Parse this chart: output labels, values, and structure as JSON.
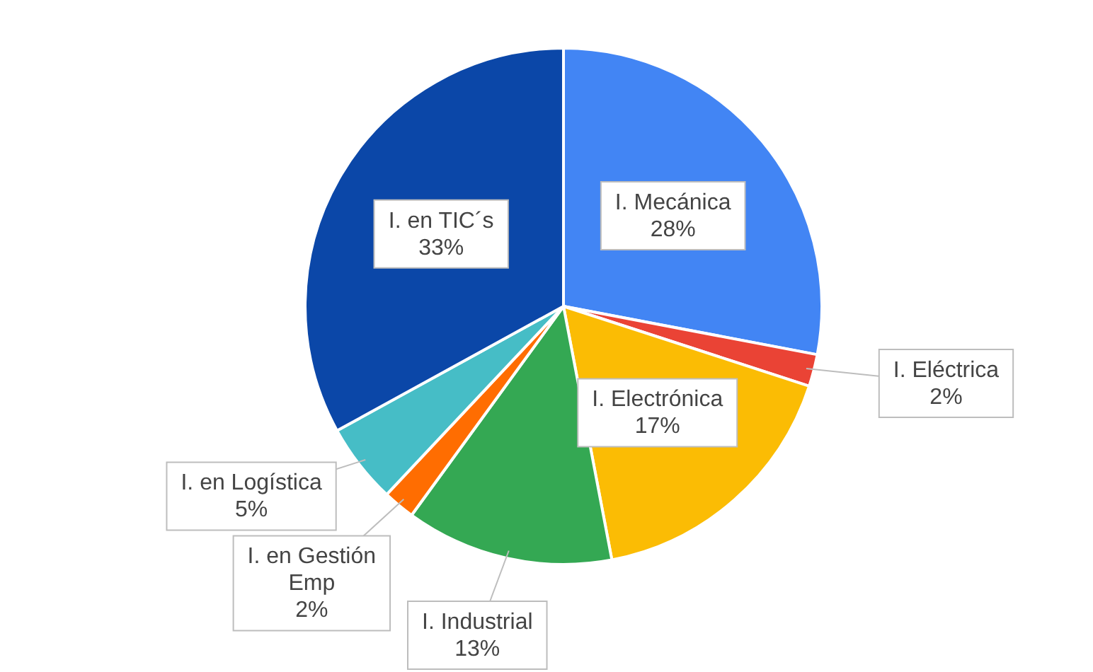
{
  "chart_data": {
    "type": "pie",
    "categories": [
      "I. Mecánica",
      "I. Eléctrica",
      "I. Electrónica",
      "I. Industrial",
      "I. en Gestión Emp",
      "I. en Logística",
      "I. en TIC´s"
    ],
    "values": [
      28,
      2,
      17,
      13,
      2,
      5,
      33
    ],
    "value_labels": [
      "28%",
      "2%",
      "17%",
      "13%",
      "2%",
      "5%",
      "33%"
    ],
    "colors": [
      "#4285f4",
      "#ea4335",
      "#fbbc04",
      "#34a853",
      "#ff6d01",
      "#46bdc6",
      "#0b47a8"
    ],
    "legend": false
  }
}
